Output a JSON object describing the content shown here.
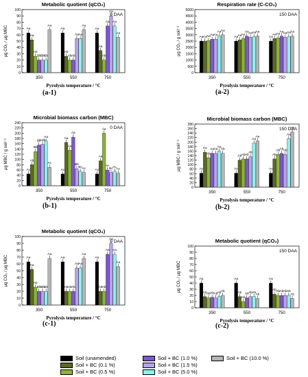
{
  "colors": {
    "soil": "#000000",
    "bc01": "#5a6b1e",
    "bc05": "#8db33a",
    "bc10": "#7f57c8",
    "bc15": "#b7a3ea",
    "bc50": "#8cf0ef",
    "bc100": "#b5b5b5",
    "accent_red": "#e8201b",
    "accent_green": "#2bd82b",
    "accent_blue": "#4a7ff0"
  },
  "legend": [
    {
      "key": "soil",
      "label": "Soil (unamended)"
    },
    {
      "key": "bc10",
      "label": "Soil + BC (1.0 %)"
    },
    {
      "key": "bc100",
      "label": "Soil + BC (10.0 %)"
    },
    {
      "key": "bc01",
      "label": "Soil + BC (0.1 %)"
    },
    {
      "key": "bc15",
      "label": "Soil + BC (1.5 %)"
    },
    {
      "key": "bc05",
      "label": "Soil + BC (0.5 %)"
    },
    {
      "key": "bc50",
      "label": "Soil + BC (5.0 %)"
    }
  ],
  "chart_data": [
    {
      "id": "a1",
      "panel_label": "(a-1)",
      "type": "bar",
      "title": "Metabolic quotient (qCO₂)",
      "note": "0 DAA",
      "xlabel": "Pyrolysis temperature / °C",
      "ylabel": "μg CO₂ / μg MBC",
      "ylim": [
        0,
        100
      ],
      "yticks": [
        0,
        10,
        20,
        30,
        40,
        50,
        60,
        70,
        80,
        90,
        100
      ],
      "categories": [
        "350",
        "550",
        "750"
      ],
      "series": [
        {
          "key": "soil",
          "values": [
            63,
            63,
            63
          ]
        },
        {
          "key": "bc01",
          "values": [
            52,
            26,
            35
          ]
        },
        {
          "key": "bc05",
          "values": [
            26,
            20,
            20
          ]
        },
        {
          "key": "bc10",
          "values": [
            20,
            20,
            74
          ]
        },
        {
          "key": "bc15",
          "values": [
            20,
            54,
            90
          ]
        },
        {
          "key": "bc50",
          "values": [
            20,
            54,
            74
          ]
        },
        {
          "key": "bc100",
          "values": [
            68,
            68,
            56
          ]
        }
      ],
      "labels": [
        [
          "Aa",
          "Aa",
          "Aa"
        ],
        [
          "Aa",
          "Ab",
          "Aa"
        ],
        [
          "Ab",
          "Ab",
          "Ab"
        ],
        [
          "Bb",
          "Ab",
          "Aa"
        ],
        [
          "Bb",
          "Aa",
          "Aa"
        ],
        [
          "Bb",
          "Aa",
          "Aa"
        ],
        [
          "Aa",
          "Aa",
          "Aa"
        ]
      ]
    },
    {
      "id": "a2",
      "panel_label": "(a-2)",
      "type": "bar",
      "title": "Respiration rate (C-CO₂)",
      "note": "150 DAA",
      "xlabel": "Pyrolysis temperature / °C",
      "ylabel": "μg CO₂ / g soil⁻¹",
      "ylim": [
        0,
        5000
      ],
      "yticks": [
        0,
        500,
        1000,
        1500,
        2000,
        2500,
        3000,
        3500,
        4000,
        4500,
        5000
      ],
      "categories": [
        "350",
        "550",
        "750"
      ],
      "series": [
        {
          "key": "soil",
          "values": [
            2500,
            2500,
            2500
          ]
        },
        {
          "key": "bc01",
          "values": [
            2500,
            2600,
            2700
          ]
        },
        {
          "key": "bc05",
          "values": [
            2550,
            2700,
            2750
          ]
        },
        {
          "key": "bc10",
          "values": [
            2650,
            2900,
            2900
          ]
        },
        {
          "key": "bc15",
          "values": [
            2650,
            2800,
            2800
          ]
        },
        {
          "key": "bc50",
          "values": [
            2900,
            2850,
            2850
          ]
        },
        {
          "key": "bc100",
          "values": [
            3000,
            2900,
            2900
          ]
        }
      ],
      "labels": [
        [
          "Aa",
          "Aa",
          "Aa"
        ],
        [
          "Aa",
          "Aa",
          "Aa"
        ],
        [
          "Aa",
          "Aa",
          "Aa"
        ],
        [
          "Aa",
          "Aa",
          "Aa"
        ],
        [
          "Aa",
          "Aa",
          "Aa"
        ],
        [
          "Aa",
          "Aa",
          "Aa"
        ],
        [
          "Aa",
          "Aa",
          "Aa"
        ]
      ]
    },
    {
      "id": "b1",
      "panel_label": "(b-1)",
      "type": "bar",
      "title": "Microbial biomass carbon (MBC)",
      "note": "0 DAA",
      "xlabel": "Pyrolysis temperature / °C",
      "ylabel": "μg MBC / g soil⁻¹",
      "ylim": [
        0,
        240
      ],
      "yticks": [
        0,
        20,
        40,
        60,
        80,
        100,
        120,
        140,
        160,
        180,
        200,
        220,
        240
      ],
      "categories": [
        "350",
        "550",
        "750"
      ],
      "series": [
        {
          "key": "soil",
          "values": [
            45,
            45,
            45
          ]
        },
        {
          "key": "bc01",
          "values": [
            80,
            165,
            95
          ]
        },
        {
          "key": "bc05",
          "values": [
            130,
            135,
            200
          ]
        },
        {
          "key": "bc10",
          "values": [
            155,
            185,
            60
          ]
        },
        {
          "key": "bc15",
          "values": [
            158,
            65,
            50
          ]
        },
        {
          "key": "bc50",
          "values": [
            170,
            55,
            55
          ]
        },
        {
          "key": "bc100",
          "values": [
            70,
            50,
            48
          ]
        }
      ],
      "labels": [
        [
          "Ac",
          "Ac",
          "Ac"
        ],
        [
          "Ab",
          "Aa",
          "Aa"
        ],
        [
          "Bb",
          "Aa",
          "Aa"
        ],
        [
          "Bb",
          "Aa",
          "Ac"
        ],
        [
          "Aab",
          "Bb",
          "Bc"
        ],
        [
          "Aa",
          "Bc",
          "Ac"
        ],
        [
          "Ac",
          "Ac",
          "Ac"
        ]
      ]
    },
    {
      "id": "b2",
      "panel_label": "(b-2)",
      "type": "bar",
      "title": "Microbial biomass carbon (MBC)",
      "note": "150 DAA",
      "xlabel": "Pyrolysis temperature / °C",
      "ylabel": "μg MBC / g soil⁻¹",
      "ylim": [
        0,
        280
      ],
      "yticks": [
        0,
        20,
        40,
        60,
        80,
        100,
        120,
        140,
        160,
        180,
        200,
        220,
        240,
        260,
        280
      ],
      "categories": [
        "350",
        "550",
        "750"
      ],
      "series": [
        {
          "key": "soil",
          "values": [
            62,
            62,
            62
          ]
        },
        {
          "key": "bc01",
          "values": [
            155,
            120,
            125
          ]
        },
        {
          "key": "bc05",
          "values": [
            130,
            125,
            145
          ]
        },
        {
          "key": "bc10",
          "values": [
            150,
            125,
            150
          ]
        },
        {
          "key": "bc15",
          "values": [
            150,
            135,
            145
          ]
        },
        {
          "key": "bc50",
          "values": [
            160,
            195,
            215
          ]
        },
        {
          "key": "bc100",
          "values": [
            150,
            205,
            245
          ]
        }
      ],
      "labels": [
        [
          "Ac",
          "Ac",
          "Ac"
        ],
        [
          "Aa",
          "Ab",
          "Ab"
        ],
        [
          "Ab",
          "Ab",
          "Ab"
        ],
        [
          "Aa",
          "Ab",
          "Ab"
        ],
        [
          "Aa",
          "Ab",
          "Ab"
        ],
        [
          "Aa",
          "Aa",
          "Aa"
        ],
        [
          "Ab",
          "Aa",
          "Aa"
        ]
      ]
    },
    {
      "id": "c1",
      "panel_label": "(c-1)",
      "type": "bar",
      "title": "Metabolic quotient (qCO₂)",
      "note": "0 DAA",
      "xlabel": "Pyrolysis temperature / °C",
      "ylabel": "μg CO₂ / μg MBC",
      "ylim": [
        0,
        100
      ],
      "yticks": [
        0,
        10,
        20,
        30,
        40,
        50,
        60,
        70,
        80,
        90,
        100
      ],
      "categories": [
        "350",
        "550",
        "750"
      ],
      "series": [
        {
          "key": "soil",
          "values": [
            63,
            63,
            63
          ]
        },
        {
          "key": "bc01",
          "values": [
            52,
            20,
            20
          ]
        },
        {
          "key": "bc05",
          "values": [
            26,
            20,
            20
          ]
        },
        {
          "key": "bc10",
          "values": [
            20,
            20,
            74
          ]
        },
        {
          "key": "bc15",
          "values": [
            20,
            54,
            90
          ]
        },
        {
          "key": "bc50",
          "values": [
            20,
            54,
            74
          ]
        },
        {
          "key": "bc100",
          "values": [
            68,
            68,
            56
          ]
        }
      ],
      "labels": [
        [
          "Aa",
          "Aa",
          "Aa"
        ],
        [
          "Aa",
          "Ab",
          "Ab"
        ],
        [
          "Ab",
          "Ab",
          "Ab"
        ],
        [
          "Bb",
          "Ab",
          "Aa"
        ],
        [
          "Bb",
          "Aa",
          "Aa"
        ],
        [
          "Bb",
          "Aa",
          "Aa"
        ],
        [
          "Aa",
          "Aa",
          "Aa"
        ]
      ]
    },
    {
      "id": "c2",
      "panel_label": "(c-2)",
      "type": "bar",
      "title": "Metabolic quotient (qCO₂)",
      "note": "150 DAA",
      "xlabel": "Pyrolysis temperature / °C",
      "ylabel": "μg CO₂ / μg MBC",
      "ylim": [
        0,
        100
      ],
      "yticks": [
        0,
        10,
        20,
        30,
        40,
        50,
        60,
        70,
        80,
        90,
        100
      ],
      "categories": [
        "350",
        "550",
        "750"
      ],
      "series": [
        {
          "key": "soil",
          "values": [
            40,
            40,
            40
          ]
        },
        {
          "key": "bc01",
          "values": [
            18,
            18,
            22
          ]
        },
        {
          "key": "bc05",
          "values": [
            16,
            10,
            20
          ]
        },
        {
          "key": "bc10",
          "values": [
            17,
            16,
            20
          ]
        },
        {
          "key": "bc15",
          "values": [
            16,
            18,
            20
          ]
        },
        {
          "key": "bc50",
          "values": [
            18,
            18,
            20
          ]
        },
        {
          "key": "bc100",
          "values": [
            20,
            15,
            15
          ]
        }
      ],
      "labels": [
        [
          "Aa",
          "Aa",
          "Aa"
        ],
        [
          "Ab",
          "Ab",
          "Ab"
        ],
        [
          "Ab",
          "Ab",
          "Ab"
        ],
        [
          "Ab",
          "Ab",
          "Ab"
        ],
        [
          "Ab",
          "Ab",
          "Ab"
        ],
        [
          "Ab",
          "Ab",
          "Ab"
        ],
        [
          "Ab",
          "Ab",
          "Ab"
        ]
      ]
    }
  ]
}
